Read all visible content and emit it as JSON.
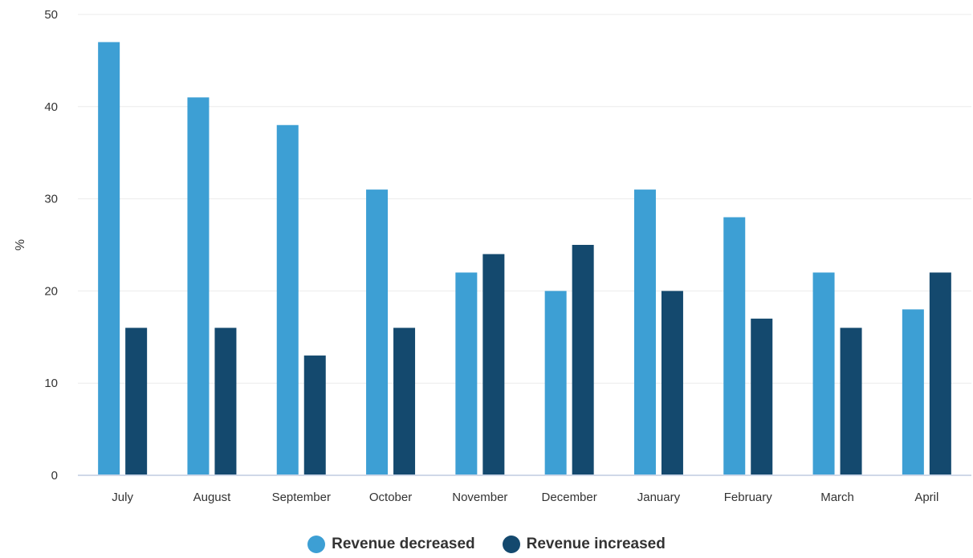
{
  "chart_data": {
    "type": "bar",
    "categories": [
      "July",
      "August",
      "September",
      "October",
      "November",
      "December",
      "January",
      "February",
      "March",
      "April"
    ],
    "series": [
      {
        "name": "Revenue decreased",
        "color": "#3d9fd4",
        "values": [
          47,
          41,
          38,
          31,
          22,
          20,
          31,
          28,
          22,
          18
        ]
      },
      {
        "name": "Revenue increased",
        "color": "#14496e",
        "values": [
          16,
          16,
          13,
          16,
          24,
          25,
          20,
          17,
          16,
          22
        ]
      }
    ],
    "ylabel": "%",
    "xlabel": "",
    "title": "",
    "ylim": [
      0,
      50
    ],
    "yticks": [
      0,
      10,
      20,
      30,
      40,
      50
    ],
    "grid": true,
    "legend_position": "bottom-center"
  }
}
